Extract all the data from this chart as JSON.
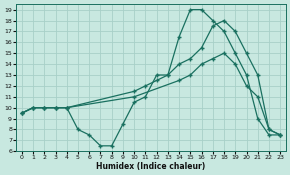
{
  "xlabel": "Humidex (Indice chaleur)",
  "xlim": [
    -0.5,
    23.5
  ],
  "ylim": [
    6,
    19.5
  ],
  "yticks": [
    6,
    7,
    8,
    9,
    10,
    11,
    12,
    13,
    14,
    15,
    16,
    17,
    18,
    19
  ],
  "xticks": [
    0,
    1,
    2,
    3,
    4,
    5,
    6,
    7,
    8,
    9,
    10,
    11,
    12,
    13,
    14,
    15,
    16,
    17,
    18,
    19,
    20,
    21,
    22,
    23
  ],
  "bg_color": "#c8e8e0",
  "grid_color": "#a8d0c8",
  "line_color": "#1a7060",
  "line1_x": [
    0,
    1,
    2,
    3,
    4,
    5,
    6,
    7,
    8,
    9,
    10,
    11,
    12,
    13,
    14,
    15,
    16,
    17,
    18,
    19,
    20,
    21,
    22,
    23
  ],
  "line1_y": [
    9.5,
    10,
    10,
    10,
    10,
    8,
    7.5,
    6.5,
    6.5,
    8.5,
    10.5,
    11,
    13,
    13,
    16.5,
    19,
    19,
    18,
    17,
    15,
    13,
    9,
    7.5,
    7.5
  ],
  "line2_x": [
    0,
    1,
    2,
    3,
    4,
    10,
    11,
    12,
    13,
    14,
    15,
    16,
    17,
    18,
    19,
    20,
    21,
    22,
    23
  ],
  "line2_y": [
    9.5,
    10,
    10,
    10,
    10,
    11.5,
    12,
    12.5,
    13,
    14,
    14.5,
    15.5,
    17.5,
    18,
    17,
    15,
    13,
    8,
    7.5
  ],
  "line3_x": [
    0,
    1,
    2,
    3,
    4,
    10,
    14,
    15,
    16,
    17,
    18,
    19,
    20,
    21,
    22,
    23
  ],
  "line3_y": [
    9.5,
    10,
    10,
    10,
    10,
    11,
    12.5,
    13,
    14,
    14.5,
    15,
    14,
    12,
    11,
    8,
    7.5
  ]
}
